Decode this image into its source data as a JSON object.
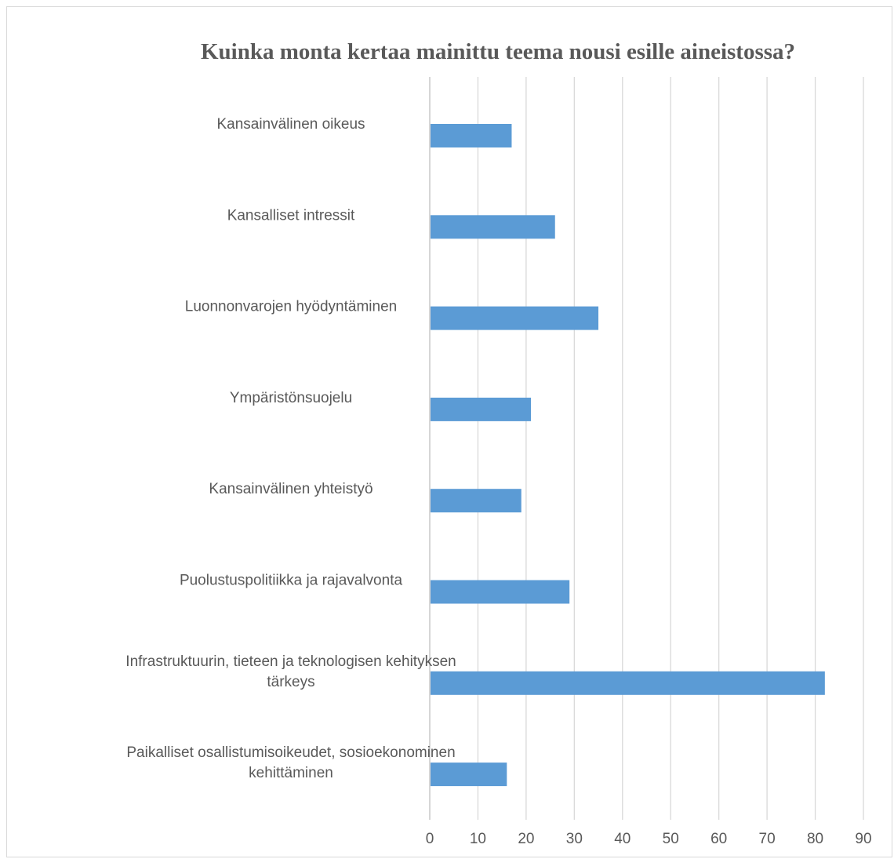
{
  "chart_data": {
    "type": "bar",
    "orientation": "horizontal",
    "title": "Kuinka monta kertaa mainittu teema nousi esille aineistossa?",
    "categories": [
      [
        "Kansainvälinen oikeus"
      ],
      [
        "Kansalliset intressit"
      ],
      [
        "Luonnonvarojen hyödyntäminen"
      ],
      [
        "Ympäristönsuojelu"
      ],
      [
        "Kansainvälinen yhteistyö"
      ],
      [
        "Puolustuspolitiikka ja rajavalvonta"
      ],
      [
        "Infrastruktuurin, tieteen ja teknologisen kehityksen",
        "tärkeys"
      ],
      [
        "Paikalliset osallistumisoikeudet, sosioekonominen",
        "kehittäminen"
      ]
    ],
    "values": [
      17,
      26,
      35,
      21,
      19,
      29,
      82,
      16
    ],
    "xlim": [
      0,
      90
    ],
    "xticks": [
      "0",
      "10",
      "20",
      "30",
      "40",
      "50",
      "60",
      "70",
      "80",
      "90"
    ],
    "grid": true,
    "legend": "none",
    "bar_color": "#5b9bd5",
    "grid_color": "#d9d9d9",
    "text_color": "#595959"
  }
}
